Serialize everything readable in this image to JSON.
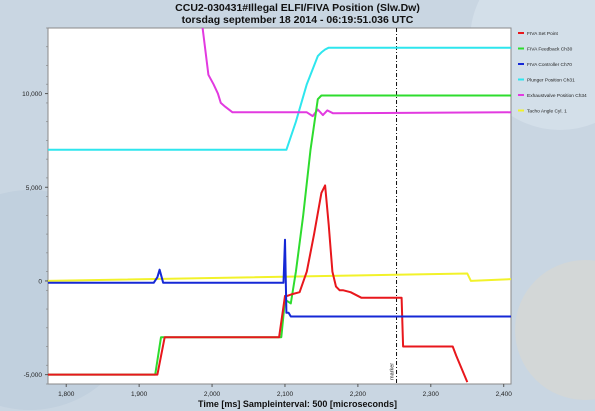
{
  "title_line1": "CCU2-030431#Illegal ELFI/FIVA Position (Slw.Dw)",
  "title_line2": "torsdag september 18 2014  -  06:19:51.036 UTC",
  "x_axis_title": "Time [ms]   Sampleinterval: 500 [microseconds]",
  "colors": {
    "background": "#c9d6e2",
    "plot_bg": "#ffffff",
    "fiva_set_point": "#e8171c",
    "fiva_feedback": "#2edc2e",
    "fiva_controller": "#1528d6",
    "plunger_position": "#2ee6ee",
    "exhaust_valve_position": "#e23ae0",
    "tacho_angle": "#f2f22a"
  },
  "chart_data": {
    "type": "line",
    "title": "CCU2-030431#Illegal ELFI/FIVA Position (Slw.Dw)",
    "subtitle": "torsdag september 18 2014  -  06:19:51.036 UTC",
    "xlabel": "Time [ms]   Sampleinterval: 500 [microseconds]",
    "ylabel": "",
    "xlim": [
      1775,
      2410
    ],
    "ylim": [
      -5500,
      13500
    ],
    "x_ticks": [
      1800,
      1900,
      2000,
      2100,
      2200,
      2300,
      2400
    ],
    "x_tick_labels": [
      "1,800",
      "1,900",
      "2,000",
      "2,100",
      "2,200",
      "2,300",
      "2,400"
    ],
    "y_ticks": [
      -5000,
      0,
      5000,
      10000
    ],
    "y_tick_labels": [
      "-5,000",
      "0",
      "5,000",
      "10,000"
    ],
    "grid": false,
    "legend_position": "right",
    "marker": {
      "x": 2253,
      "label": "marker"
    },
    "series": [
      {
        "name": "FIVA Set Point",
        "color": "#e8171c",
        "x": [
          1775,
          1925,
          1935,
          2092,
          2100,
          2103,
          2110,
          2120,
          2130,
          2140,
          2150,
          2155,
          2160,
          2165,
          2170,
          2175,
          2180,
          2190,
          2205,
          2260,
          2262,
          2280,
          2330,
          2335,
          2350
        ],
        "y": [
          -5000,
          -5000,
          -3000,
          -3000,
          -800,
          -800,
          -700,
          -600,
          500,
          2500,
          4700,
          5100,
          3000,
          500,
          -300,
          -500,
          -500,
          -600,
          -900,
          -900,
          -3500,
          -3500,
          -3500,
          -4000,
          -5400
        ]
      },
      {
        "name": "FIVA Feedback Ch30",
        "color": "#2edc2e",
        "x": [
          1775,
          1922,
          1930,
          2095,
          2100,
          2108,
          2115,
          2125,
          2135,
          2145,
          2150,
          2410
        ],
        "y": [
          -5000,
          -5000,
          -3000,
          -3000,
          -1000,
          -1200,
          500,
          3500,
          7000,
          9700,
          9900,
          9900
        ]
      },
      {
        "name": "FIVA Controller Ch70",
        "color": "#1528d6",
        "x": [
          1775,
          1920,
          1925,
          1928,
          1933,
          1940,
          2098,
          2100,
          2102,
          2105,
          2108,
          2115,
          2410
        ],
        "y": [
          -100,
          -100,
          200,
          600,
          -100,
          -100,
          -100,
          2200,
          -1700,
          -1700,
          -1900,
          -1900,
          -1900
        ]
      },
      {
        "name": "Plunger Position Ch31",
        "color": "#2ee6ee",
        "x": [
          1775,
          2102,
          2115,
          2130,
          2145,
          2150,
          2155,
          2160,
          2410
        ],
        "y": [
          7000,
          7000,
          8500,
          10500,
          12000,
          12200,
          12350,
          12450,
          12450
        ]
      },
      {
        "name": "Exhaustvalve Position Ch34",
        "color": "#e23ae0",
        "x": [
          1987,
          1995,
          2002,
          2008,
          2012,
          2018,
          2028,
          2040,
          2130,
          2138,
          2145,
          2152,
          2158,
          2166,
          2410
        ],
        "y": [
          13500,
          11000,
          10500,
          10000,
          9500,
          9300,
          9000,
          9000,
          9000,
          8800,
          9150,
          8850,
          9100,
          8950,
          9000
        ]
      },
      {
        "name": "Tacho Angle Cyl. 1",
        "color": "#f2f22a",
        "x": [
          1775,
          2350,
          2355,
          2410
        ],
        "y": [
          0,
          400,
          0,
          100
        ]
      }
    ]
  }
}
